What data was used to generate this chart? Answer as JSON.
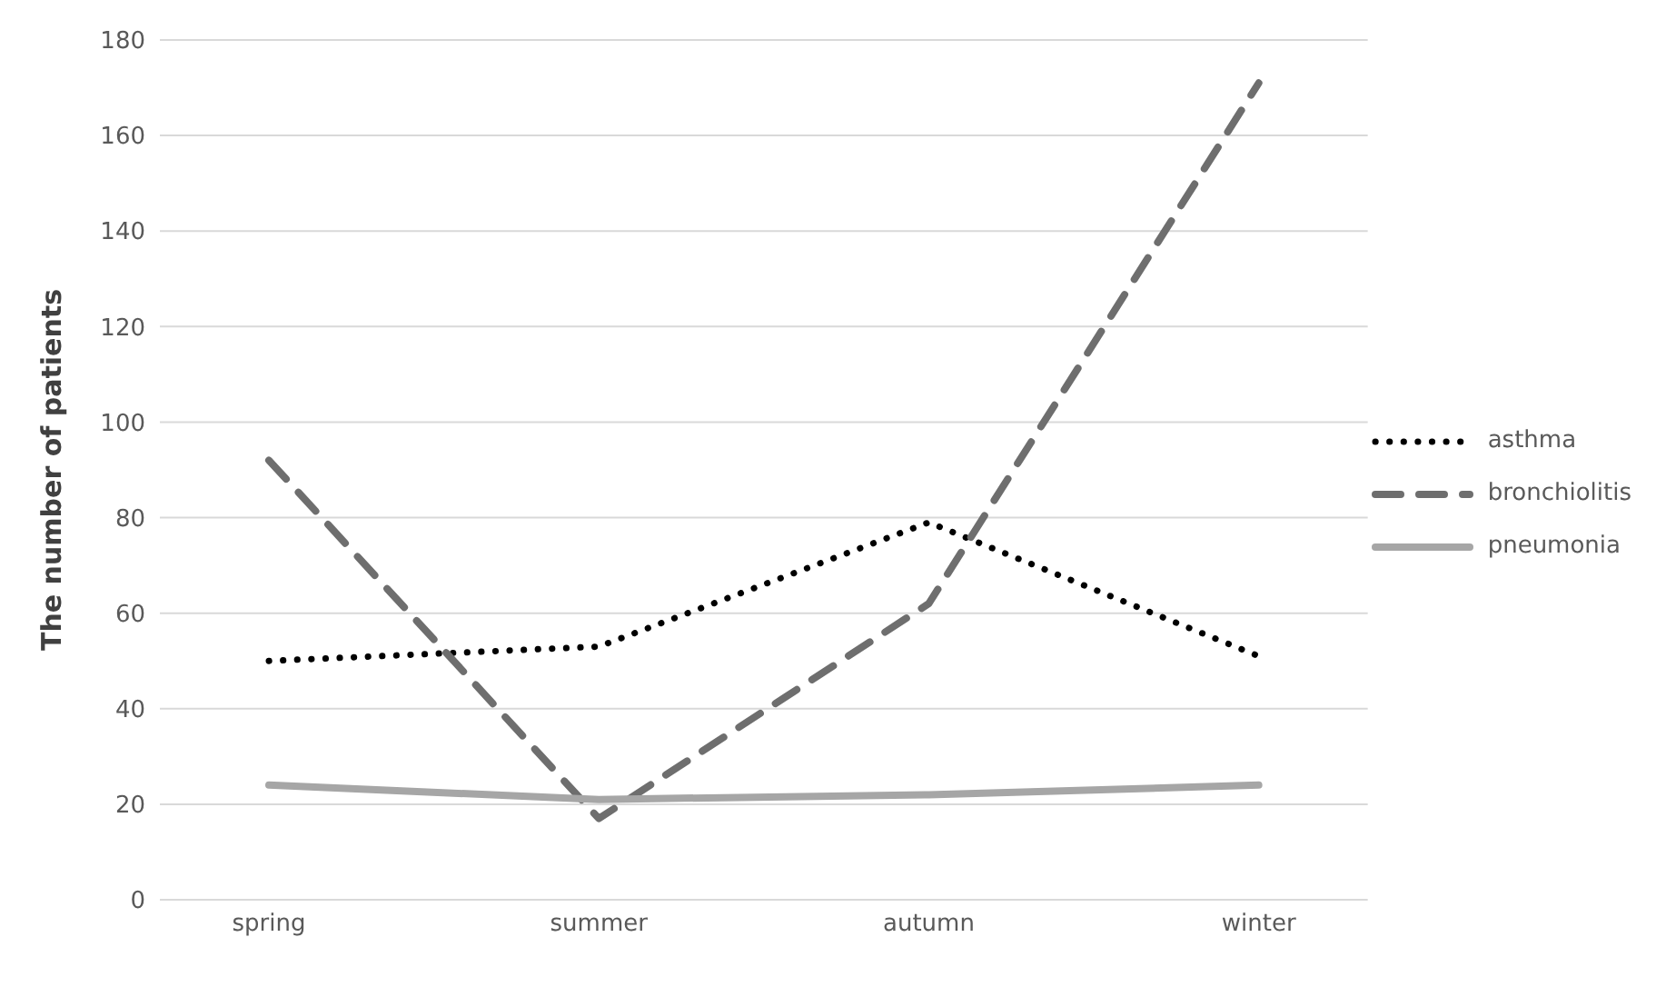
{
  "chart_data": {
    "type": "line",
    "ylabel": "The number of patients",
    "categories": [
      "spring",
      "summer",
      "autumn",
      "winter"
    ],
    "series": [
      {
        "name": "asthma",
        "color": "#000000",
        "line_style": "dotted",
        "values": [
          50,
          53,
          79,
          51
        ]
      },
      {
        "name": "bronchiolitis",
        "color": "#6e6e6e",
        "line_style": "dashed",
        "values": [
          92,
          17,
          62,
          171
        ]
      },
      {
        "name": "pneumonia",
        "color": "#a6a6a6",
        "line_style": "solid",
        "values": [
          24,
          21,
          22,
          24
        ]
      }
    ],
    "ylim": [
      0,
      180
    ],
    "yticks": [
      0,
      20,
      40,
      60,
      80,
      100,
      120,
      140,
      160,
      180
    ],
    "grid": "y",
    "legend": "right",
    "marker": "none"
  }
}
